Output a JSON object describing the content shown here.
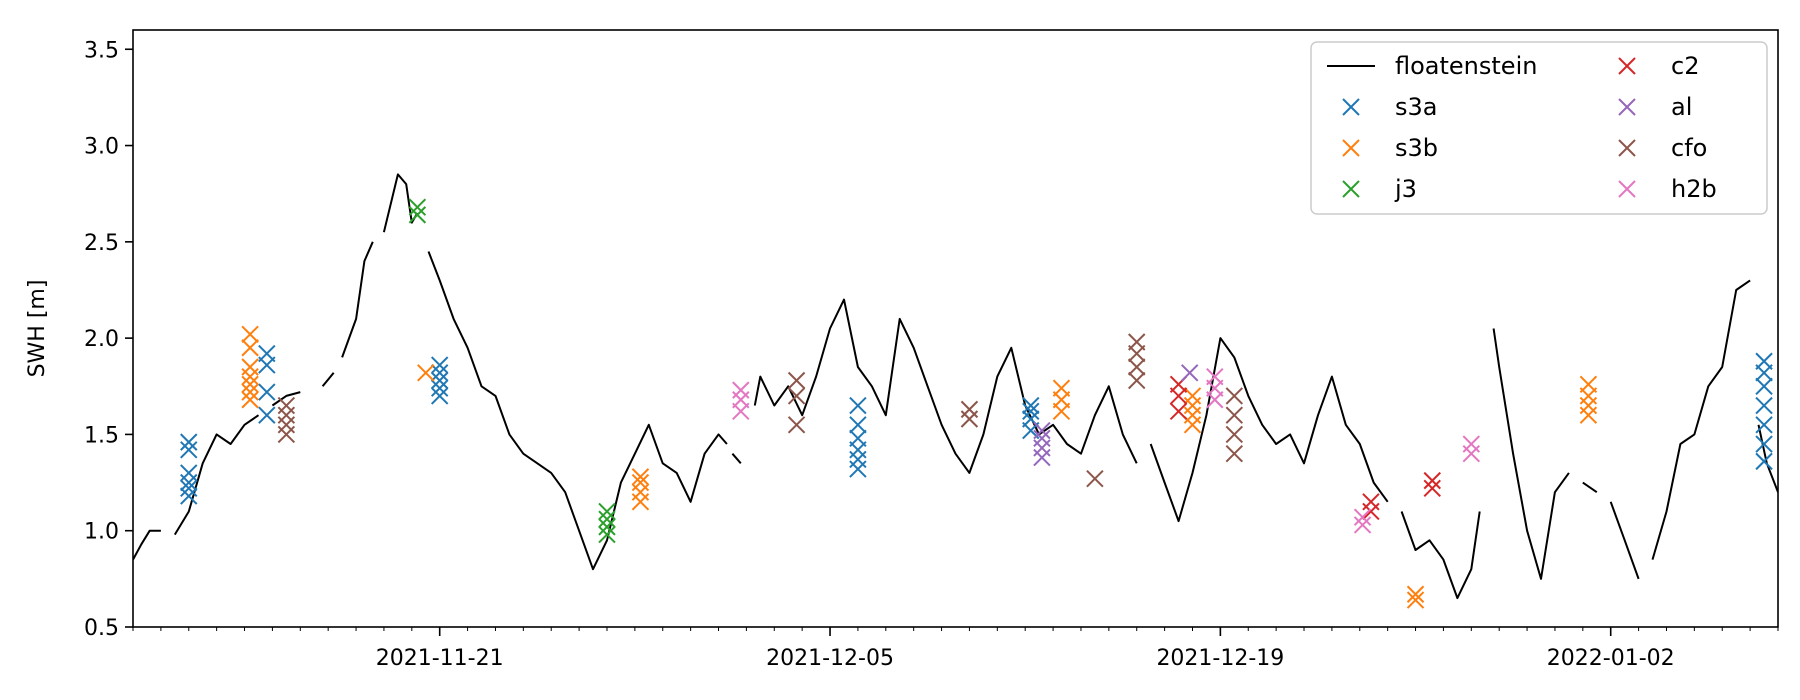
{
  "chart_data": {
    "type": "line",
    "title": "",
    "xlabel": "",
    "ylabel": "SWH [m]",
    "ylim": [
      0.5,
      3.6
    ],
    "xlim": [
      "2021-11-10",
      "2022-01-08"
    ],
    "x_ticks": [
      "2021-11-21",
      "2021-12-05",
      "2021-12-19",
      "2022-01-02"
    ],
    "y_ticks": [
      0.5,
      1.0,
      1.5,
      2.0,
      2.5,
      3.0,
      3.5
    ],
    "y_tick_labels": [
      "0.5",
      "1.0",
      "1.5",
      "2.0",
      "2.5",
      "3.0",
      "3.5"
    ],
    "grid": false,
    "legend_position": "top-right",
    "series": [
      {
        "name": "floatenstein",
        "kind": "line",
        "color": "#000000",
        "segments": [
          [
            [
              "2021-11-10",
              0.85
            ],
            [
              "2021-11-10.3",
              0.93
            ],
            [
              "2021-11-10.6",
              1.0
            ],
            [
              "2021-11-11",
              1.0
            ]
          ],
          [
            [
              "2021-11-11.5",
              0.98
            ],
            [
              "2021-11-12",
              1.1
            ],
            [
              "2021-11-12.5",
              1.35
            ],
            [
              "2021-11-13",
              1.5
            ],
            [
              "2021-11-13.5",
              1.45
            ],
            [
              "2021-11-14",
              1.55
            ],
            [
              "2021-11-14.5",
              1.6
            ]
          ],
          [
            [
              "2021-11-15",
              1.65
            ],
            [
              "2021-11-15.5",
              1.7
            ],
            [
              "2021-11-16",
              1.72
            ]
          ],
          [
            [
              "2021-11-16.8",
              1.75
            ],
            [
              "2021-11-17.2",
              1.82
            ]
          ],
          [
            [
              "2021-11-17.5",
              1.9
            ],
            [
              "2021-11-18",
              2.1
            ],
            [
              "2021-11-18.3",
              2.4
            ],
            [
              "2021-11-18.6",
              2.5
            ]
          ],
          [
            [
              "2021-11-19",
              2.55
            ],
            [
              "2021-11-19.5",
              2.85
            ],
            [
              "2021-11-19.8",
              2.8
            ],
            [
              "2021-11-20",
              2.6
            ],
            [
              "2021-11-20.2",
              2.65
            ]
          ],
          [
            [
              "2021-11-20.6",
              2.45
            ],
            [
              "2021-11-21",
              2.3
            ],
            [
              "2021-11-21.5",
              2.1
            ],
            [
              "2021-11-22",
              1.95
            ],
            [
              "2021-11-22.5",
              1.75
            ],
            [
              "2021-11-23",
              1.7
            ],
            [
              "2021-11-23.5",
              1.5
            ],
            [
              "2021-11-24",
              1.4
            ],
            [
              "2021-11-24.5",
              1.35
            ],
            [
              "2021-11-25",
              1.3
            ],
            [
              "2021-11-25.5",
              1.2
            ],
            [
              "2021-11-26",
              1.0
            ],
            [
              "2021-11-26.5",
              0.8
            ],
            [
              "2021-11-27",
              0.95
            ],
            [
              "2021-11-27.5",
              1.25
            ],
            [
              "2021-11-28",
              1.4
            ],
            [
              "2021-11-28.5",
              1.55
            ],
            [
              "2021-11-29",
              1.35
            ],
            [
              "2021-11-29.5",
              1.3
            ],
            [
              "2021-11-30",
              1.15
            ],
            [
              "2021-11-30.5",
              1.4
            ],
            [
              "2021-12-01",
              1.5
            ],
            [
              "2021-12-01.3",
              1.45
            ]
          ],
          [
            [
              "2021-12-01.5",
              1.4
            ],
            [
              "2021-12-01.8",
              1.35
            ]
          ],
          [
            [
              "2021-12-02.3",
              1.65
            ],
            [
              "2021-12-02.5",
              1.8
            ],
            [
              "2021-12-03",
              1.65
            ],
            [
              "2021-12-03.5",
              1.75
            ],
            [
              "2021-12-04",
              1.6
            ],
            [
              "2021-12-04.5",
              1.8
            ],
            [
              "2021-12-05",
              2.05
            ],
            [
              "2021-12-05.5",
              2.2
            ],
            [
              "2021-12-06",
              1.85
            ],
            [
              "2021-12-06.5",
              1.75
            ],
            [
              "2021-12-07",
              1.6
            ],
            [
              "2021-12-07.5",
              2.1
            ],
            [
              "2021-12-08",
              1.95
            ],
            [
              "2021-12-08.5",
              1.75
            ],
            [
              "2021-12-09",
              1.55
            ],
            [
              "2021-12-09.5",
              1.4
            ],
            [
              "2021-12-10",
              1.3
            ],
            [
              "2021-12-10.5",
              1.5
            ],
            [
              "2021-12-11",
              1.8
            ],
            [
              "2021-12-11.5",
              1.95
            ],
            [
              "2021-12-12",
              1.65
            ],
            [
              "2021-12-12.5",
              1.5
            ],
            [
              "2021-12-13",
              1.55
            ],
            [
              "2021-12-13.5",
              1.45
            ],
            [
              "2021-12-14",
              1.4
            ],
            [
              "2021-12-14.5",
              1.6
            ],
            [
              "2021-12-15",
              1.75
            ],
            [
              "2021-12-15.5",
              1.5
            ],
            [
              "2021-12-16",
              1.35
            ]
          ],
          [
            [
              "2021-12-16.5",
              1.45
            ],
            [
              "2021-12-17",
              1.25
            ],
            [
              "2021-12-17.5",
              1.05
            ],
            [
              "2021-12-18",
              1.3
            ],
            [
              "2021-12-18.5",
              1.6
            ],
            [
              "2021-12-19",
              2.0
            ],
            [
              "2021-12-19.5",
              1.9
            ],
            [
              "2021-12-20",
              1.7
            ],
            [
              "2021-12-20.5",
              1.55
            ],
            [
              "2021-12-21",
              1.45
            ],
            [
              "2021-12-21.5",
              1.5
            ],
            [
              "2021-12-22",
              1.35
            ],
            [
              "2021-12-22.5",
              1.6
            ],
            [
              "2021-12-23",
              1.8
            ],
            [
              "2021-12-23.5",
              1.55
            ],
            [
              "2021-12-24",
              1.45
            ],
            [
              "2021-12-24.5",
              1.25
            ],
            [
              "2021-12-25",
              1.15
            ]
          ],
          [
            [
              "2021-12-25.5",
              1.1
            ],
            [
              "2021-12-26",
              0.9
            ],
            [
              "2021-12-26.5",
              0.95
            ],
            [
              "2021-12-27",
              0.85
            ],
            [
              "2021-12-27.5",
              0.65
            ],
            [
              "2021-12-28",
              0.8
            ],
            [
              "2021-12-28.3",
              1.1
            ]
          ],
          [
            [
              "2021-12-28.8",
              2.05
            ],
            [
              "2021-12-29",
              1.85
            ],
            [
              "2021-12-29.5",
              1.4
            ],
            [
              "2021-12-30",
              1.0
            ],
            [
              "2021-12-30.5",
              0.75
            ],
            [
              "2021-12-31",
              1.2
            ],
            [
              "2021-12-31.5",
              1.3
            ]
          ],
          [
            [
              "2022-01-01",
              1.25
            ],
            [
              "2022-01-01.5",
              1.2
            ]
          ],
          [
            [
              "2022-01-02",
              1.15
            ],
            [
              "2022-01-02.5",
              0.95
            ],
            [
              "2022-01-03",
              0.75
            ]
          ],
          [
            [
              "2022-01-03.5",
              0.85
            ],
            [
              "2022-01-04",
              1.1
            ],
            [
              "2022-01-04.5",
              1.45
            ],
            [
              "2022-01-05",
              1.5
            ],
            [
              "2022-01-05.5",
              1.75
            ],
            [
              "2022-01-06",
              1.85
            ],
            [
              "2022-01-06.5",
              2.25
            ],
            [
              "2022-01-07",
              2.3
            ]
          ],
          [
            [
              "2022-01-07.3",
              1.55
            ],
            [
              "2022-01-07.6",
              1.35
            ],
            [
              "2022-01-08",
              1.2
            ]
          ]
        ]
      },
      {
        "name": "s3a",
        "kind": "markers",
        "color": "#1f77b4",
        "points": [
          [
            "2021-11-12",
            1.18
          ],
          [
            "2021-11-12",
            1.22
          ],
          [
            "2021-11-12",
            1.25
          ],
          [
            "2021-11-12",
            1.3
          ],
          [
            "2021-11-12",
            1.42
          ],
          [
            "2021-11-12",
            1.46
          ],
          [
            "2021-11-14.8",
            1.6
          ],
          [
            "2021-11-14.8",
            1.72
          ],
          [
            "2021-11-14.8",
            1.86
          ],
          [
            "2021-11-14.8",
            1.92
          ],
          [
            "2021-11-21",
            1.7
          ],
          [
            "2021-11-21",
            1.74
          ],
          [
            "2021-11-21",
            1.78
          ],
          [
            "2021-11-21",
            1.82
          ],
          [
            "2021-11-21",
            1.86
          ],
          [
            "2021-12-06",
            1.32
          ],
          [
            "2021-12-06",
            1.37
          ],
          [
            "2021-12-06",
            1.42
          ],
          [
            "2021-12-06",
            1.48
          ],
          [
            "2021-12-06",
            1.55
          ],
          [
            "2021-12-06",
            1.65
          ],
          [
            "2021-12-12.2",
            1.52
          ],
          [
            "2021-12-12.2",
            1.58
          ],
          [
            "2021-12-12.2",
            1.62
          ],
          [
            "2021-12-12.2",
            1.65
          ],
          [
            "2022-01-07.5",
            1.36
          ],
          [
            "2022-01-07.5",
            1.45
          ],
          [
            "2022-01-07.5",
            1.55
          ],
          [
            "2022-01-07.5",
            1.65
          ],
          [
            "2022-01-07.5",
            1.75
          ],
          [
            "2022-01-07.5",
            1.82
          ],
          [
            "2022-01-07.5",
            1.88
          ]
        ]
      },
      {
        "name": "s3b",
        "kind": "markers",
        "color": "#ff7f0e",
        "points": [
          [
            "2021-11-14.2",
            1.68
          ],
          [
            "2021-11-14.2",
            1.72
          ],
          [
            "2021-11-14.2",
            1.76
          ],
          [
            "2021-11-14.2",
            1.8
          ],
          [
            "2021-11-14.2",
            1.85
          ],
          [
            "2021-11-14.2",
            1.95
          ],
          [
            "2021-11-14.2",
            2.02
          ],
          [
            "2021-11-20.5",
            1.82
          ],
          [
            "2021-11-28.2",
            1.15
          ],
          [
            "2021-11-28.2",
            1.2
          ],
          [
            "2021-11-28.2",
            1.25
          ],
          [
            "2021-11-28.2",
            1.28
          ],
          [
            "2021-12-13.3",
            1.62
          ],
          [
            "2021-12-13.3",
            1.68
          ],
          [
            "2021-12-13.3",
            1.74
          ],
          [
            "2021-12-18",
            1.55
          ],
          [
            "2021-12-18",
            1.6
          ],
          [
            "2021-12-18",
            1.65
          ],
          [
            "2021-12-18",
            1.7
          ],
          [
            "2021-12-26",
            0.64
          ],
          [
            "2021-12-26",
            0.67
          ],
          [
            "2022-01-01.2",
            1.6
          ],
          [
            "2022-01-01.2",
            1.65
          ],
          [
            "2022-01-01.2",
            1.7
          ],
          [
            "2022-01-01.2",
            1.76
          ]
        ]
      },
      {
        "name": "j3",
        "kind": "markers",
        "color": "#2ca02c",
        "points": [
          [
            "2021-11-20.2",
            2.64
          ],
          [
            "2021-11-20.2",
            2.68
          ],
          [
            "2021-11-27",
            0.98
          ],
          [
            "2021-11-27",
            1.02
          ],
          [
            "2021-11-27",
            1.06
          ],
          [
            "2021-11-27",
            1.1
          ]
        ]
      },
      {
        "name": "c2",
        "kind": "markers",
        "color": "#d62728",
        "points": [
          [
            "2021-12-17.5",
            1.62
          ],
          [
            "2021-12-17.5",
            1.7
          ],
          [
            "2021-12-17.5",
            1.76
          ],
          [
            "2021-12-24.4",
            1.1
          ],
          [
            "2021-12-24.4",
            1.15
          ],
          [
            "2021-12-26.6",
            1.22
          ],
          [
            "2021-12-26.6",
            1.26
          ]
        ]
      },
      {
        "name": "al",
        "kind": "markers",
        "color": "#9467bd",
        "points": [
          [
            "2021-12-12.6",
            1.38
          ],
          [
            "2021-12-12.6",
            1.43
          ],
          [
            "2021-12-12.6",
            1.48
          ],
          [
            "2021-12-12.6",
            1.52
          ],
          [
            "2021-12-17.9",
            1.82
          ]
        ]
      },
      {
        "name": "cfo",
        "kind": "markers",
        "color": "#8c564b",
        "points": [
          [
            "2021-11-15.5",
            1.5
          ],
          [
            "2021-11-15.5",
            1.55
          ],
          [
            "2021-11-15.5",
            1.6
          ],
          [
            "2021-11-15.5",
            1.65
          ],
          [
            "2021-12-03.8",
            1.55
          ],
          [
            "2021-12-03.8",
            1.7
          ],
          [
            "2021-12-03.8",
            1.78
          ],
          [
            "2021-12-10",
            1.58
          ],
          [
            "2021-12-10",
            1.63
          ],
          [
            "2021-12-14.5",
            1.27
          ],
          [
            "2021-12-16",
            1.78
          ],
          [
            "2021-12-16",
            1.85
          ],
          [
            "2021-12-16",
            1.92
          ],
          [
            "2021-12-16",
            1.98
          ],
          [
            "2021-12-19.5",
            1.4
          ],
          [
            "2021-12-19.5",
            1.5
          ],
          [
            "2021-12-19.5",
            1.6
          ],
          [
            "2021-12-19.5",
            1.7
          ]
        ]
      },
      {
        "name": "h2b",
        "kind": "markers",
        "color": "#e377c2",
        "points": [
          [
            "2021-12-01.8",
            1.62
          ],
          [
            "2021-12-01.8",
            1.68
          ],
          [
            "2021-12-01.8",
            1.73
          ],
          [
            "2021-12-18.8",
            1.68
          ],
          [
            "2021-12-18.8",
            1.74
          ],
          [
            "2021-12-18.8",
            1.8
          ],
          [
            "2021-12-24.1",
            1.03
          ],
          [
            "2021-12-24.1",
            1.07
          ],
          [
            "2021-12-28",
            1.4
          ],
          [
            "2021-12-28",
            1.45
          ]
        ]
      }
    ]
  }
}
